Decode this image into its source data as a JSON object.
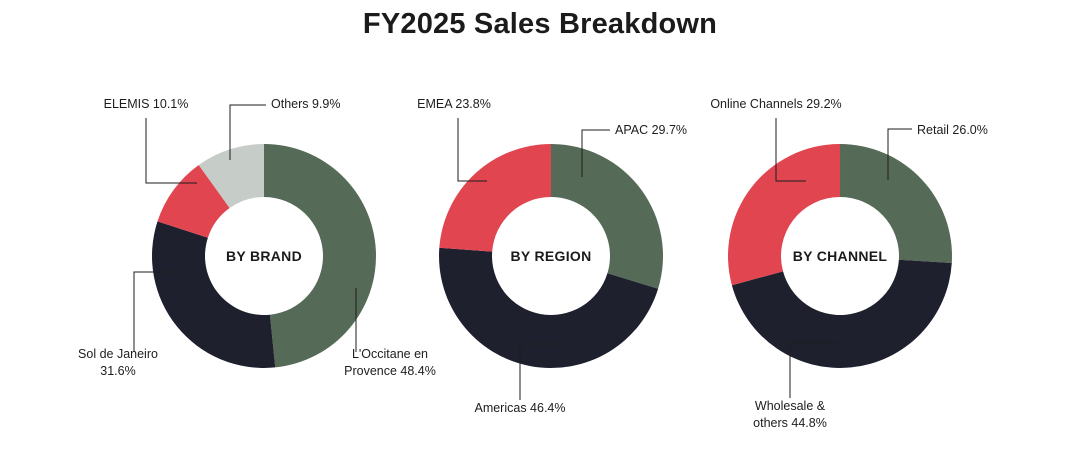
{
  "title": "FY2025 Sales Breakdown",
  "colors": {
    "green": "#566a58",
    "red": "#e04550",
    "navy": "#1e202d",
    "grey": "#c6ccc7"
  },
  "chart_data": [
    {
      "type": "pie",
      "donut": true,
      "center_label": "BY BRAND",
      "slices": [
        {
          "label": [
            "L'Occitane en",
            "Provence 48.4%"
          ],
          "value": 48.4,
          "color": "green"
        },
        {
          "label": [
            "Sol de Janeiro",
            "31.6%"
          ],
          "value": 31.6,
          "color": "navy"
        },
        {
          "label": [
            "ELEMIS 10.1%"
          ],
          "value": 10.1,
          "color": "red"
        },
        {
          "label": [
            "Others 9.9%"
          ],
          "value": 9.9,
          "color": "grey"
        }
      ]
    },
    {
      "type": "pie",
      "donut": true,
      "center_label": "BY REGION",
      "slices": [
        {
          "label": [
            "APAC 29.7%"
          ],
          "value": 29.7,
          "color": "green"
        },
        {
          "label": [
            "Americas 46.4%"
          ],
          "value": 46.4,
          "color": "navy"
        },
        {
          "label": [
            "EMEA 23.8%"
          ],
          "value": 23.8,
          "color": "red"
        }
      ]
    },
    {
      "type": "pie",
      "donut": true,
      "center_label": "BY CHANNEL",
      "slices": [
        {
          "label": [
            "Retail 26.0%"
          ],
          "value": 26.0,
          "color": "green"
        },
        {
          "label": [
            "Wholesale &",
            "others 44.8%"
          ],
          "value": 44.8,
          "color": "navy"
        },
        {
          "label": [
            "Online Channels 29.2%"
          ],
          "value": 29.2,
          "color": "red"
        }
      ]
    }
  ]
}
